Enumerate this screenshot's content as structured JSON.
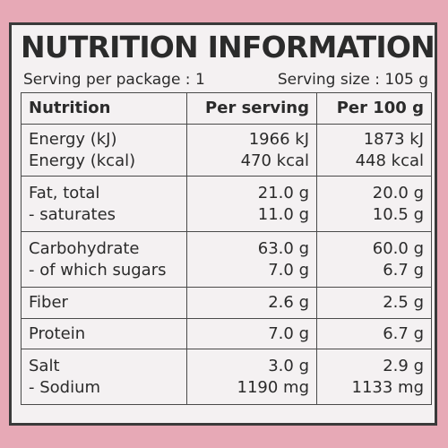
{
  "title": "NUTRITION INFORMATION",
  "serving": {
    "per_package": "Serving per package : 1",
    "size": "Serving size : 105 g"
  },
  "table": {
    "headers": [
      "Nutrition",
      "Per serving",
      "Per 100 g"
    ],
    "rows": [
      {
        "name": [
          "Energy (kJ)",
          "Energy (kcal)"
        ],
        "per_serving": [
          "1966 kJ",
          "470 kcal"
        ],
        "per_100g": [
          "1873 kJ",
          "448 kcal"
        ]
      },
      {
        "name": [
          "Fat, total",
          "- saturates"
        ],
        "per_serving": [
          "21.0 g",
          "11.0 g"
        ],
        "per_100g": [
          "20.0 g",
          "10.5 g"
        ]
      },
      {
        "name": [
          "Carbohydrate",
          "- of which sugars"
        ],
        "per_serving": [
          "63.0 g",
          "7.0 g"
        ],
        "per_100g": [
          "60.0 g",
          "6.7 g"
        ]
      },
      {
        "name": [
          "Fiber"
        ],
        "per_serving": [
          "2.6 g"
        ],
        "per_100g": [
          "2.5 g"
        ]
      },
      {
        "name": [
          "Protein"
        ],
        "per_serving": [
          "7.0 g"
        ],
        "per_100g": [
          "6.7 g"
        ]
      },
      {
        "name": [
          "Salt",
          "- Sodium"
        ],
        "per_serving": [
          "3.0 g",
          "1190 mg"
        ],
        "per_100g": [
          "2.9 g",
          "1133 mg"
        ]
      }
    ]
  },
  "colors": {
    "background_pink": "#e7a9b6",
    "panel": "#f4f1f2",
    "text": "#2b2b2b"
  }
}
